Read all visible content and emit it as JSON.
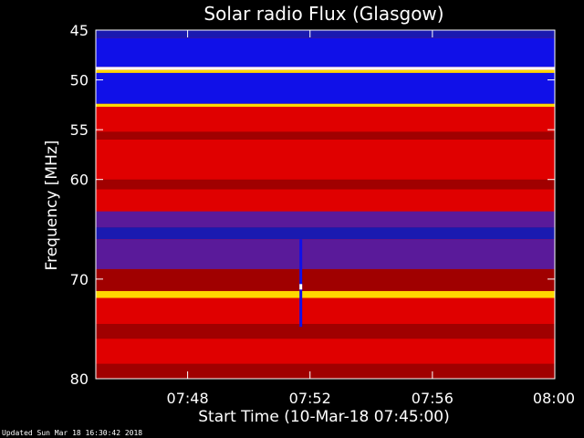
{
  "chart_data": {
    "type": "heatmap",
    "title": "Solar radio Flux (Glasgow)",
    "xlabel": "Start Time (10-Mar-18 07:45:00)",
    "ylabel": "Frequency [MHz]",
    "x_ticks": [
      "07:48",
      "07:52",
      "07:56",
      "08:00"
    ],
    "x_tick_minutes": [
      3,
      7,
      11,
      15
    ],
    "xlim_minutes": [
      0,
      15
    ],
    "y_ticks": [
      45,
      50,
      55,
      60,
      70,
      80
    ],
    "ylim": [
      45,
      80
    ],
    "colors": {
      "blue": "#1010e8",
      "dark_blue": "#1a1ab0",
      "purple": "#5a1a9a",
      "dark_red": "#a00000",
      "red": "#e00000",
      "bright_red": "#ff1010",
      "yellow": "#ffd800",
      "white": "#ffffff"
    },
    "bands": [
      {
        "from": 45,
        "to": 45.8,
        "color": "dark_blue"
      },
      {
        "from": 45.8,
        "to": 48.7,
        "color": "blue"
      },
      {
        "from": 48.7,
        "to": 49.0,
        "color": "white"
      },
      {
        "from": 49.0,
        "to": 49.3,
        "color": "yellow"
      },
      {
        "from": 49.3,
        "to": 52.4,
        "color": "blue"
      },
      {
        "from": 52.4,
        "to": 52.7,
        "color": "yellow"
      },
      {
        "from": 52.7,
        "to": 55.2,
        "color": "red"
      },
      {
        "from": 55.2,
        "to": 56.0,
        "color": "dark_red"
      },
      {
        "from": 56.0,
        "to": 60.0,
        "color": "red"
      },
      {
        "from": 60.0,
        "to": 61.0,
        "color": "dark_red"
      },
      {
        "from": 61.0,
        "to": 63.2,
        "color": "red"
      },
      {
        "from": 63.2,
        "to": 64.8,
        "color": "purple"
      },
      {
        "from": 64.8,
        "to": 66.0,
        "color": "dark_blue"
      },
      {
        "from": 66.0,
        "to": 69.0,
        "color": "purple"
      },
      {
        "from": 69.0,
        "to": 71.2,
        "color": "dark_red"
      },
      {
        "from": 71.2,
        "to": 71.9,
        "color": "yellow"
      },
      {
        "from": 71.9,
        "to": 74.5,
        "color": "red"
      },
      {
        "from": 74.5,
        "to": 76.0,
        "color": "dark_red"
      },
      {
        "from": 76.0,
        "to": 78.5,
        "color": "red"
      },
      {
        "from": 78.5,
        "to": 80.0,
        "color": "dark_red"
      }
    ],
    "burst": {
      "minute": 6.7,
      "from": 66.0,
      "to": 74.8
    },
    "grid": false,
    "legend": "none"
  },
  "footer": "Updated Sun Mar 18 16:30:42 2018"
}
